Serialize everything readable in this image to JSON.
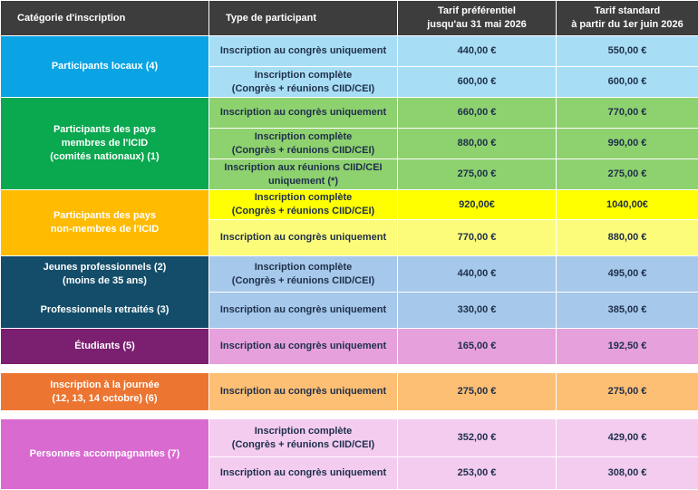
{
  "header": {
    "category": "Catégorie d'inscription",
    "type": "Type de participant",
    "early": "Tarif préférentiel\njusqu'au 31 mai 2026",
    "standard": "Tarif standard\nà partir du 1er juin 2026"
  },
  "groups": [
    {
      "category": "Participants locaux (4)",
      "colors": {
        "cat": "#0aa4e5",
        "row": "#a8def5"
      },
      "rows": [
        {
          "type": "Inscription au congrès uniquement",
          "early": "440,00 €",
          "standard": "550,00 €"
        },
        {
          "type": "Inscription complète\n(Congrès + réunions CIID/CEI)",
          "early": "600,00 €",
          "standard": "600,00 €"
        }
      ]
    },
    {
      "category": "Participants des pays\nmembres de l'ICID\n(comités nationaux) (1)",
      "colors": {
        "cat": "#0aa84f",
        "row": "#8ed16f"
      },
      "rows": [
        {
          "type": "Inscription au congrès uniquement",
          "early": "660,00 €",
          "standard": "770,00 €"
        },
        {
          "type": "Inscription complète\n(Congrès + réunions CIID/CEI)",
          "early": "880,00 €",
          "standard": "990,00 €"
        },
        {
          "type": "Inscription aux réunions CIID/CEI\nuniquement (*)",
          "early": "275,00 €",
          "standard": "275,00 €"
        }
      ]
    },
    {
      "category": "Participants des pays\nnon-membres de l'ICID",
      "colors": {
        "cat": "#ffbb00",
        "row": "#fdfc7a",
        "row_highlight": "#ffff00"
      },
      "rows": [
        {
          "type": "Inscription complète\n(Congrès + réunions CIID/CEI)",
          "early": "920,00€",
          "standard": "1040,00€"
        },
        {
          "type": "Inscription au congrès uniquement",
          "early": "770,00 €",
          "standard": "880,00 €"
        }
      ]
    },
    {
      "category": "Jeunes professionnels (2)\n(moins de 35 ans)",
      "category_extra": "Professionnels retraités (3)",
      "colors": {
        "cat": "#134d6a",
        "row": "#a6c8ea"
      },
      "rows": [
        {
          "type": "Inscription complète\n(Congrès + réunions CIID/CEI)",
          "early": "440,00 €",
          "standard": "495,00 €"
        },
        {
          "type": "Inscription au congrès uniquement",
          "early": "330,00 €",
          "standard": "385,00 €"
        }
      ]
    },
    {
      "category": "Étudiants (5)",
      "colors": {
        "cat": "#7b1f70",
        "row": "#e6a0dc"
      },
      "rows": [
        {
          "type": "Inscription au congrès uniquement",
          "early": "165,00 €",
          "standard": "192,50 €"
        }
      ]
    },
    {
      "category": "Inscription à la journée\n(12, 13, 14 octobre) (6)",
      "colors": {
        "cat": "#ec7531",
        "row": "#fdbf73"
      },
      "rows": [
        {
          "type": "Inscription au congrès uniquement",
          "early": "275,00 €",
          "standard": "275,00 €"
        }
      ]
    },
    {
      "category": "Personnes accompagnantes (7)",
      "colors": {
        "cat": "#d86ad0",
        "row": "#f3ccf0"
      },
      "rows": [
        {
          "type": "Inscription complète\n(Congrès + réunions CIID/CEI)",
          "early": "352,00 €",
          "standard": "429,00 €"
        },
        {
          "type": "Inscription au congrès uniquement",
          "early": "253,00 €",
          "standard": "308,00 €"
        }
      ]
    }
  ]
}
